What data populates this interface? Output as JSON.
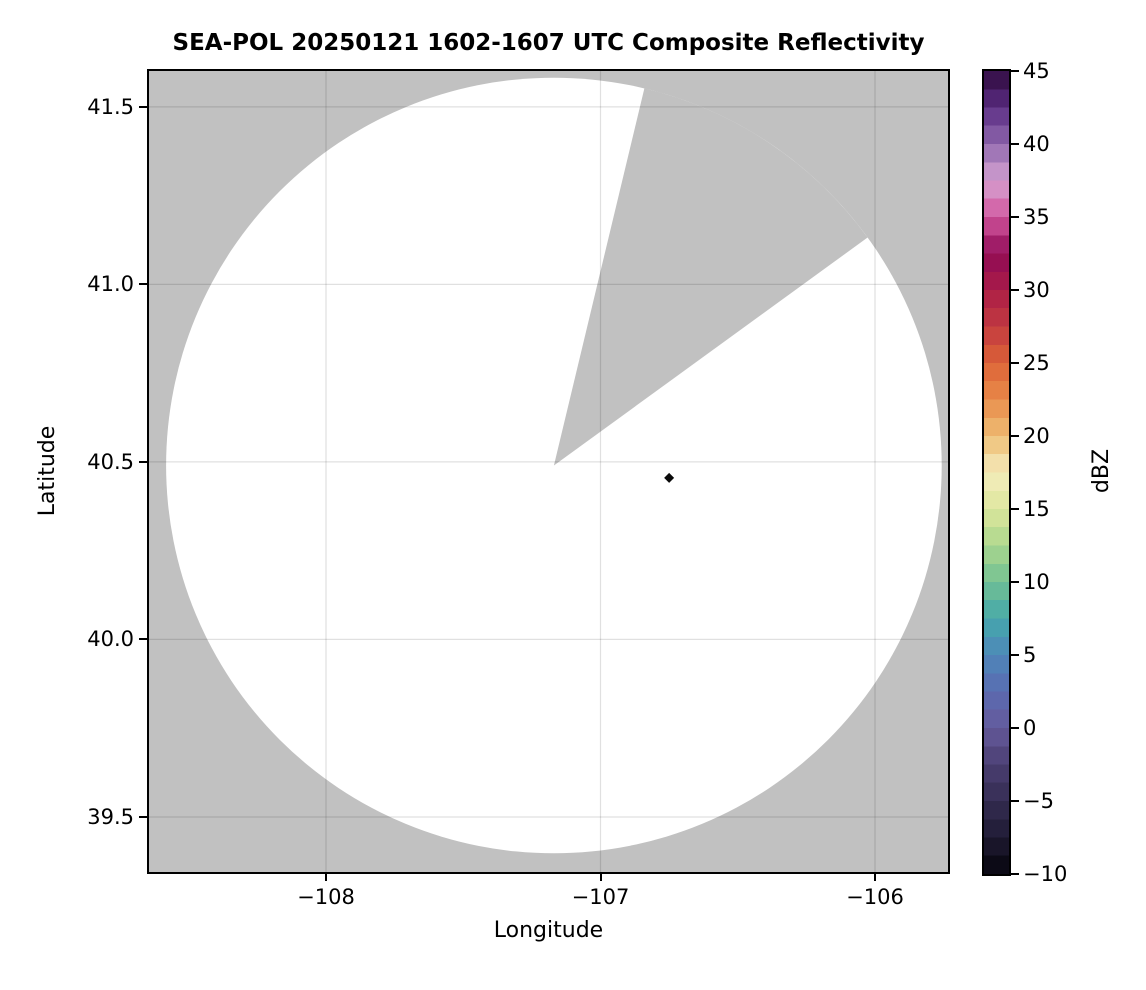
{
  "figure": {
    "title": "SEA-POL 20250121 1602-1607 UTC Composite Reflectivity",
    "background_color": "#ffffff"
  },
  "chart_data": {
    "type": "heatmap",
    "description": "Radar composite reflectivity PPI coverage map on a lat/lon grid. White disk = scanned radar coverage with no echo; light-gray = no data (outside 120 km range and inside a blocked/missing azimuth sector); one tiny near-black echo pixel cluster east of the radar.",
    "title": "SEA-POL 20250121 1602-1607 UTC Composite Reflectivity",
    "xlabel": "Longitude",
    "ylabel": "Latitude",
    "xlim": [
      -108.645,
      -105.734
    ],
    "ylim": [
      39.345,
      41.601
    ],
    "xticks": {
      "values": [
        -108,
        -107,
        -106
      ],
      "labels": [
        "−108",
        "−107",
        "−106"
      ]
    },
    "yticks": {
      "values": [
        41.5,
        41.0,
        40.5,
        40.0,
        39.5
      ],
      "labels": [
        "41.5",
        "41.0",
        "40.5",
        "40.0",
        "39.5"
      ]
    },
    "grid": true,
    "grid_color": "rgba(0,0,0,0.12)",
    "no_data_color": "#c1c1c1",
    "coverage_color": "#ffffff",
    "radar": {
      "center_lon": -107.17,
      "center_lat": 40.49,
      "radius_deg_lon": 1.413,
      "missing_sector_azimuth_deg": [
        13.5,
        54.0
      ]
    },
    "echoes": [
      {
        "lon": -106.75,
        "lat": 40.455,
        "approx_dbz": -10,
        "color": "#0a0a0a",
        "marker": "diamond"
      }
    ],
    "colorbar": {
      "label": "dBZ",
      "vmin": -10,
      "vmax": 45,
      "step_dbz": 1.25,
      "tick_values": [
        45,
        40,
        35,
        30,
        25,
        20,
        15,
        10,
        5,
        0,
        -5,
        -10
      ],
      "tick_labels": [
        "45",
        "40",
        "35",
        "30",
        "25",
        "20",
        "15",
        "10",
        "5",
        "0",
        "−5",
        "−10"
      ],
      "legend_position": "right",
      "color_anchors": [
        [
          -10.0,
          "#06050c"
        ],
        [
          -7.5,
          "#1f1a33"
        ],
        [
          -5.0,
          "#342c52"
        ],
        [
          -2.5,
          "#4a3e72"
        ],
        [
          0.0,
          "#655a9b"
        ],
        [
          2.5,
          "#5a6bb1"
        ],
        [
          5.0,
          "#4e87b9"
        ],
        [
          7.5,
          "#45a8ab"
        ],
        [
          10.0,
          "#72c093"
        ],
        [
          12.5,
          "#abd78d"
        ],
        [
          15.0,
          "#dde79d"
        ],
        [
          17.5,
          "#f5ecbd"
        ],
        [
          20.0,
          "#eebd74"
        ],
        [
          22.5,
          "#e98b4a"
        ],
        [
          25.0,
          "#dd6337"
        ],
        [
          27.5,
          "#c23a40"
        ],
        [
          30.0,
          "#ab1c47"
        ],
        [
          32.5,
          "#8f0a56"
        ],
        [
          35.0,
          "#d2569e"
        ],
        [
          37.5,
          "#d6a3d2"
        ],
        [
          40.0,
          "#8f68ae"
        ],
        [
          42.5,
          "#5b2d83"
        ],
        [
          45.0,
          "#2f0a3d"
        ]
      ]
    }
  }
}
